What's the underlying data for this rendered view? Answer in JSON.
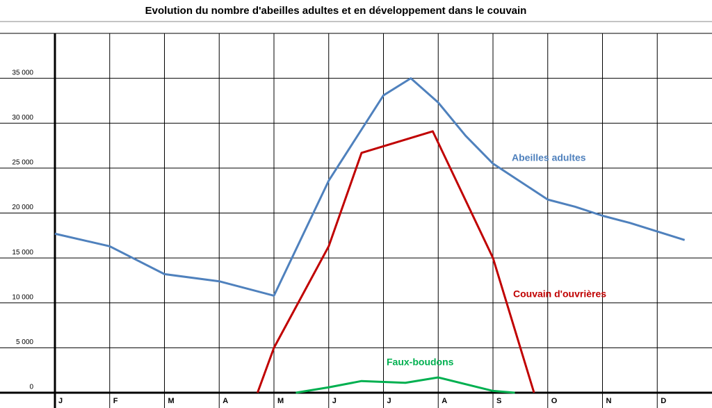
{
  "chart_data": {
    "type": "line",
    "title": "Evolution du nombre d'abeilles adultes et en développement dans le couvain",
    "xlim": [
      0,
      12
    ],
    "xticks": [
      {
        "value": 0,
        "label": "J"
      },
      {
        "value": 1,
        "label": "F"
      },
      {
        "value": 2,
        "label": "M"
      },
      {
        "value": 3,
        "label": "A"
      },
      {
        "value": 4,
        "label": "M"
      },
      {
        "value": 5,
        "label": "J"
      },
      {
        "value": 6,
        "label": "J"
      },
      {
        "value": 7,
        "label": "A"
      },
      {
        "value": 8,
        "label": "S"
      },
      {
        "value": 9,
        "label": "O"
      },
      {
        "value": 10,
        "label": "N"
      },
      {
        "value": 11,
        "label": "D"
      }
    ],
    "ylim": [
      0,
      40000
    ],
    "yticks": [
      0,
      {
        "value": 5000,
        "label": "5 000"
      },
      {
        "value": 10000,
        "label": "10 000"
      },
      {
        "value": 15000,
        "label": "15 000"
      },
      {
        "value": 20000,
        "label": "20 000"
      },
      {
        "value": 25000,
        "label": "25 000"
      },
      {
        "value": 30000,
        "label": "30 000"
      },
      {
        "value": 35000,
        "label": "35 000"
      }
    ],
    "grid": true,
    "series": [
      {
        "name": "Abeilles adultes",
        "color": "#4f81bd",
        "x": [
          0,
          1,
          2,
          3,
          4,
          5,
          6,
          6.5,
          7,
          7.5,
          8,
          9,
          9.5,
          10,
          10.5,
          11.5
        ],
        "values": [
          17700,
          16300,
          13200,
          12400,
          10800,
          23600,
          33100,
          35000,
          32300,
          28600,
          25500,
          21500,
          20700,
          19700,
          18900,
          17000
        ]
      },
      {
        "name": "Couvain d'ouvrières",
        "color": "#c00000",
        "x": [
          3.7,
          4,
          5,
          5.6,
          6.9,
          8,
          8.75
        ],
        "values": [
          0,
          5000,
          16300,
          26700,
          29100,
          15000,
          0
        ]
      },
      {
        "name": "Faux-boudons",
        "color": "#00b050",
        "x": [
          4.4,
          5,
          5.6,
          6.4,
          7,
          8,
          8.4
        ],
        "values": [
          0,
          600,
          1300,
          1100,
          1700,
          200,
          0
        ]
      }
    ]
  }
}
